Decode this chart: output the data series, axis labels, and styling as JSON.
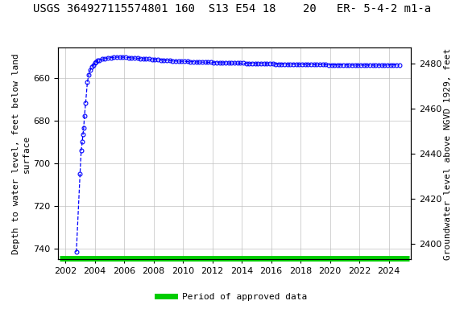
{
  "title": "USGS 364927115574801 160  S13 E54 18    20   ER- 5-4-2 m1-a",
  "ylabel_left": "Depth to water level, feet below land\nsurface",
  "ylabel_right": "Groundwater level above NGVD 1929, feet",
  "xlim": [
    2001.5,
    2025.5
  ],
  "ylim_left": [
    745,
    646
  ],
  "ylim_right": [
    2393,
    2487
  ],
  "yticks_left": [
    660,
    680,
    700,
    720,
    740
  ],
  "yticks_right": [
    2400,
    2420,
    2440,
    2460,
    2480
  ],
  "xticks": [
    2002,
    2004,
    2006,
    2008,
    2010,
    2012,
    2014,
    2016,
    2018,
    2020,
    2022,
    2024
  ],
  "data_color": "#0000ff",
  "legend_label": "Period of approved data",
  "legend_color": "#00cc00",
  "background_color": "#ffffff",
  "grid_color": "#c0c0c0",
  "title_fontsize": 10,
  "axis_label_fontsize": 8,
  "tick_fontsize": 8,
  "data_x": [
    2002.75,
    2003.0,
    2003.08,
    2003.15,
    2003.2,
    2003.25,
    2003.3,
    2003.38,
    2003.5,
    2003.6,
    2003.7,
    2003.8,
    2003.9,
    2004.0,
    2004.1,
    2004.2,
    2004.3,
    2004.5,
    2004.7,
    2004.9,
    2005.1,
    2005.3,
    2005.5,
    2005.7,
    2005.9,
    2006.1,
    2006.3,
    2006.5,
    2006.7,
    2006.9,
    2007.1,
    2007.3,
    2007.5,
    2007.7,
    2007.9,
    2008.1,
    2008.3,
    2008.5,
    2008.7,
    2008.9,
    2009.1,
    2009.3,
    2009.5,
    2009.7,
    2009.9,
    2010.1,
    2010.3,
    2010.5,
    2010.7,
    2010.9,
    2011.1,
    2011.3,
    2011.5,
    2011.7,
    2011.9,
    2012.1,
    2012.3,
    2012.5,
    2012.7,
    2012.9,
    2013.1,
    2013.3,
    2013.5,
    2013.7,
    2013.9,
    2014.1,
    2014.3,
    2014.5,
    2014.7,
    2014.9,
    2015.1,
    2015.3,
    2015.5,
    2015.7,
    2015.9,
    2016.1,
    2016.3,
    2016.5,
    2016.7,
    2016.9,
    2017.1,
    2017.3,
    2017.5,
    2017.7,
    2017.9,
    2018.1,
    2018.3,
    2018.5,
    2018.7,
    2018.9,
    2019.1,
    2019.3,
    2019.5,
    2019.7,
    2019.9,
    2020.1,
    2020.3,
    2020.5,
    2020.7,
    2020.9,
    2021.1,
    2021.3,
    2021.5,
    2021.7,
    2021.9,
    2022.1,
    2022.3,
    2022.5,
    2022.7,
    2022.9,
    2023.1,
    2023.3,
    2023.5,
    2023.7,
    2023.9,
    2024.1,
    2024.3,
    2024.5,
    2024.7
  ],
  "data_y": [
    741.5,
    705.0,
    694.0,
    690.0,
    686.5,
    683.5,
    678.0,
    672.0,
    662.0,
    658.5,
    656.5,
    655.0,
    654.0,
    653.2,
    652.5,
    652.0,
    651.7,
    651.3,
    651.0,
    650.8,
    650.6,
    650.5,
    650.4,
    650.4,
    650.4,
    650.5,
    650.6,
    650.7,
    650.8,
    650.9,
    651.0,
    651.1,
    651.2,
    651.3,
    651.4,
    651.5,
    651.6,
    651.7,
    651.8,
    651.9,
    652.0,
    652.1,
    652.2,
    652.3,
    652.3,
    652.4,
    652.4,
    652.5,
    652.5,
    652.6,
    652.6,
    652.7,
    652.7,
    652.8,
    652.8,
    652.9,
    652.9,
    653.0,
    653.0,
    653.0,
    653.1,
    653.1,
    653.1,
    653.2,
    653.2,
    653.2,
    653.3,
    653.3,
    653.3,
    653.4,
    653.4,
    653.4,
    653.5,
    653.5,
    653.5,
    653.5,
    653.6,
    653.6,
    653.6,
    653.6,
    653.7,
    653.7,
    653.7,
    653.7,
    653.8,
    653.8,
    653.8,
    653.8,
    653.8,
    653.9,
    653.9,
    653.9,
    653.9,
    653.9,
    654.0,
    654.0,
    654.0,
    654.0,
    654.0,
    654.0,
    654.0,
    654.0,
    654.1,
    654.1,
    654.1,
    654.1,
    654.1,
    654.1,
    654.1,
    654.1,
    654.1,
    654.1,
    654.1,
    654.1,
    654.1,
    654.0,
    654.0,
    654.0,
    654.0
  ]
}
